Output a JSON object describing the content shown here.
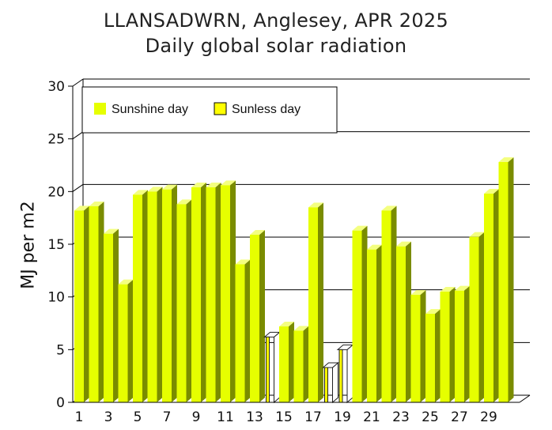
{
  "title_line1": "LLANSADWRN, Anglesey, APR 2025",
  "title_line2": "Daily global solar radiation",
  "chart_data": {
    "type": "bar",
    "title": "LLANSADWRN, Anglesey, APR 2025",
    "subtitle": "Daily global solar radiation",
    "xlabel": "",
    "ylabel": "MJ per m2",
    "ylim": [
      0,
      30
    ],
    "yticks": [
      0,
      5,
      10,
      15,
      20,
      25,
      30
    ],
    "xtick_labels": [
      "1",
      "3",
      "5",
      "7",
      "9",
      "11",
      "13",
      "15",
      "17",
      "19",
      "21",
      "23",
      "25",
      "27",
      "29"
    ],
    "categories": [
      1,
      2,
      3,
      4,
      5,
      6,
      7,
      8,
      9,
      10,
      11,
      12,
      13,
      14,
      15,
      16,
      17,
      18,
      19,
      20,
      21,
      22,
      23,
      24,
      25,
      26,
      27,
      28,
      29,
      30
    ],
    "values": [
      18.2,
      18.6,
      16.0,
      11.2,
      19.7,
      20.0,
      20.2,
      18.8,
      20.4,
      20.4,
      20.6,
      13.1,
      15.9,
      6.2,
      7.2,
      6.8,
      18.5,
      3.3,
      5.0,
      16.3,
      14.5,
      18.2,
      14.8,
      10.2,
      8.4,
      10.5,
      10.6,
      15.7,
      19.8,
      22.8
    ],
    "sunless": [
      false,
      false,
      false,
      false,
      false,
      false,
      false,
      false,
      false,
      false,
      false,
      false,
      false,
      true,
      false,
      false,
      false,
      true,
      true,
      false,
      false,
      false,
      false,
      false,
      false,
      false,
      false,
      false,
      false,
      false
    ],
    "legend": [
      {
        "label": "Sunshine day",
        "color": "#e6ff00"
      },
      {
        "label": "Sunless day",
        "color": "#ffff00"
      }
    ],
    "legend_position": "top-left",
    "grid": true,
    "colors": {
      "sunshine_front": "#e6ff00",
      "sunshine_side": "#7a8c00",
      "sunshine_top": "#f4ff80",
      "sunless_front": "#ffff00",
      "outline": "#222222",
      "grid": "#000000"
    }
  }
}
